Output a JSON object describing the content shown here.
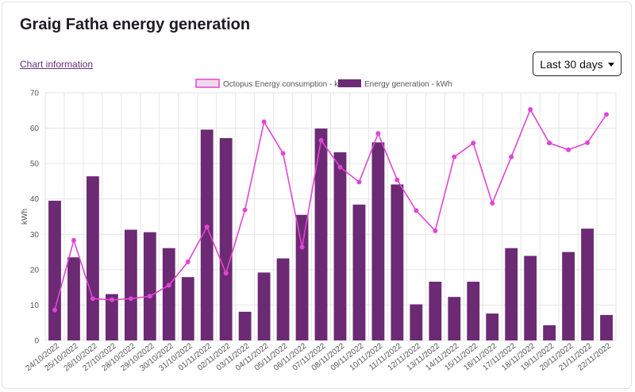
{
  "header": {
    "title": "Graig Fatha energy generation",
    "info_link": "Chart information",
    "range_label": "Last 30 days"
  },
  "colors": {
    "bar": "#6b2a73",
    "line": "#e046d4",
    "legend_consumption_fill": "#f3d9ee",
    "grid": "#e6e6e6"
  },
  "chart_data": {
    "type": "bar",
    "title": "Graig Fatha energy generation",
    "ylabel": "kWh",
    "xlabel": "",
    "ylim": [
      0,
      70
    ],
    "yticks": [
      0,
      10,
      20,
      30,
      40,
      50,
      60,
      70
    ],
    "grid": true,
    "legend_position": "top",
    "categories": [
      "24/10/2022",
      "25/10/2022",
      "26/10/2022",
      "27/10/2022",
      "28/10/2022",
      "29/10/2022",
      "30/10/2022",
      "31/10/2022",
      "01/11/2022",
      "02/11/2022",
      "03/11/2022",
      "04/11/2022",
      "05/11/2022",
      "06/11/2022",
      "07/11/2022",
      "08/11/2022",
      "09/11/2022",
      "10/11/2022",
      "11/11/2022",
      "12/11/2022",
      "13/11/2022",
      "14/11/2022",
      "15/11/2022",
      "16/11/2022",
      "17/11/2022",
      "18/11/2022",
      "19/11/2022",
      "20/11/2022",
      "21/11/2022",
      "22/11/2022"
    ],
    "series": [
      {
        "name": "Octopus Energy consumption - kWh",
        "type": "line",
        "values": [
          8.6,
          28.3,
          11.8,
          11.5,
          11.8,
          12.5,
          15.6,
          22.2,
          32.1,
          19.0,
          36.9,
          61.8,
          52.9,
          26.4,
          56.6,
          49.0,
          44.8,
          58.5,
          45.4,
          36.7,
          31.0,
          51.9,
          55.8,
          38.8,
          51.9,
          65.3,
          55.8,
          53.9,
          55.9,
          63.9
        ]
      },
      {
        "name": "Energy generation - kWh",
        "type": "bar",
        "values": [
          39.5,
          23.5,
          46.4,
          13.1,
          31.3,
          30.6,
          26.1,
          17.9,
          59.6,
          57.2,
          8.1,
          19.2,
          23.2,
          35.5,
          59.9,
          53.2,
          38.4,
          56.0,
          44.1,
          10.2,
          16.6,
          12.3,
          16.6,
          7.6,
          26.1,
          23.9,
          4.3,
          25.0,
          31.6,
          7.2
        ]
      }
    ]
  }
}
